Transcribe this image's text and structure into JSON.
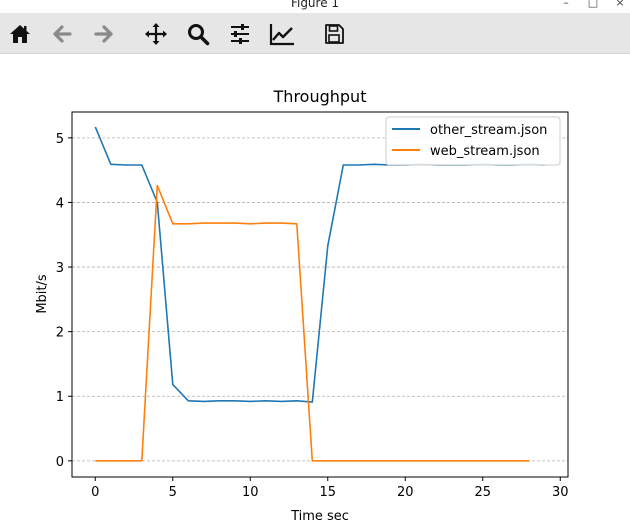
{
  "window": {
    "title": "Figure 1",
    "controls": [
      "–",
      "□",
      "×"
    ]
  },
  "toolbar": {
    "buttons": [
      {
        "name": "home",
        "icon": "home-icon"
      },
      {
        "name": "back",
        "icon": "arrow-left-icon"
      },
      {
        "name": "forward",
        "icon": "arrow-right-icon"
      },
      {
        "name": "pan",
        "icon": "move-icon"
      },
      {
        "name": "zoom",
        "icon": "magnifier-icon"
      },
      {
        "name": "configure-subplots",
        "icon": "sliders-icon"
      },
      {
        "name": "edit-axis",
        "icon": "line-chart-icon"
      },
      {
        "name": "save",
        "icon": "floppy-disk-icon"
      }
    ]
  },
  "chart_data": {
    "type": "line",
    "title": "Throughput",
    "xlabel": "Time sec",
    "ylabel": "Mbit/s",
    "xlim": [
      -1.5,
      30.5
    ],
    "ylim": [
      -0.25,
      5.4
    ],
    "xticks": [
      0,
      5,
      10,
      15,
      20,
      25,
      30
    ],
    "yticks": [
      0,
      1,
      2,
      3,
      4,
      5
    ],
    "grid": "horizontal dashed",
    "legend_position": "top-right",
    "series": [
      {
        "name": "other_stream.json",
        "color": "#1f77b4",
        "x": [
          0,
          1,
          2,
          3,
          4,
          5,
          6,
          7,
          8,
          9,
          10,
          11,
          12,
          13,
          14,
          15,
          16,
          17,
          18,
          19,
          20,
          21,
          22,
          23,
          24,
          25,
          26,
          27,
          28,
          29
        ],
        "y": [
          5.17,
          4.59,
          4.58,
          4.58,
          4.0,
          1.18,
          0.93,
          0.92,
          0.93,
          0.93,
          0.92,
          0.93,
          0.92,
          0.93,
          0.91,
          3.33,
          4.58,
          4.58,
          4.59,
          4.58,
          4.58,
          4.59,
          4.58,
          4.58,
          4.58,
          4.59,
          4.58,
          4.58,
          4.59,
          4.58
        ]
      },
      {
        "name": "web_stream.json",
        "color": "#ff7f0e",
        "x": [
          0,
          1,
          2,
          3,
          4,
          5,
          6,
          7,
          8,
          9,
          10,
          11,
          12,
          13,
          14,
          15,
          16,
          17,
          18,
          19,
          20,
          21,
          22,
          23,
          24,
          25,
          26,
          27,
          28
        ],
        "y": [
          0,
          0,
          0,
          0,
          4.26,
          3.67,
          3.67,
          3.68,
          3.68,
          3.68,
          3.67,
          3.68,
          3.68,
          3.67,
          0,
          0,
          0,
          0,
          0,
          0,
          0,
          0,
          0,
          0,
          0,
          0,
          0,
          0,
          0
        ]
      }
    ]
  }
}
